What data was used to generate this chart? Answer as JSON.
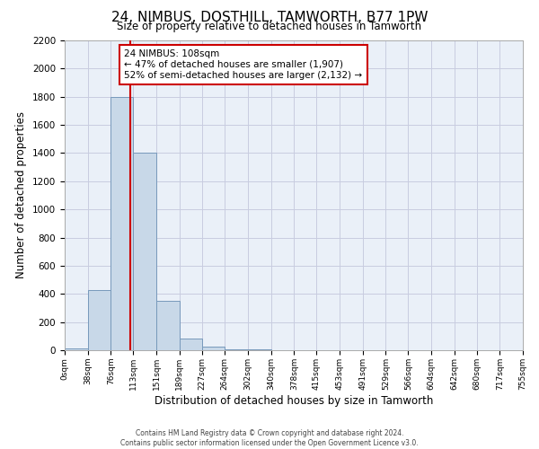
{
  "title": "24, NIMBUS, DOSTHILL, TAMWORTH, B77 1PW",
  "subtitle": "Size of property relative to detached houses in Tamworth",
  "xlabel": "Distribution of detached houses by size in Tamworth",
  "ylabel": "Number of detached properties",
  "bin_edges": [
    0,
    38,
    76,
    113,
    151,
    189,
    227,
    264,
    302,
    340,
    378,
    415,
    453,
    491,
    529,
    566,
    604,
    642,
    680,
    717,
    755
  ],
  "bin_counts": [
    10,
    430,
    1800,
    1400,
    350,
    80,
    25,
    5,
    5,
    0,
    0,
    0,
    0,
    0,
    0,
    0,
    0,
    0,
    0,
    0
  ],
  "bar_color": "#c8d8e8",
  "bar_edge_color": "#7799bb",
  "property_value": 108,
  "vline_color": "#cc0000",
  "annotation_text": "24 NIMBUS: 108sqm\n← 47% of detached houses are smaller (1,907)\n52% of semi-detached houses are larger (2,132) →",
  "annotation_box_color": "#ffffff",
  "annotation_box_edge_color": "#cc0000",
  "xlim": [
    0,
    755
  ],
  "ylim": [
    0,
    2200
  ],
  "yticks": [
    0,
    200,
    400,
    600,
    800,
    1000,
    1200,
    1400,
    1600,
    1800,
    2000,
    2200
  ],
  "xtick_labels": [
    "0sqm",
    "38sqm",
    "76sqm",
    "113sqm",
    "151sqm",
    "189sqm",
    "227sqm",
    "264sqm",
    "302sqm",
    "340sqm",
    "378sqm",
    "415sqm",
    "453sqm",
    "491sqm",
    "529sqm",
    "566sqm",
    "604sqm",
    "642sqm",
    "680sqm",
    "717sqm",
    "755sqm"
  ],
  "grid_color": "#c8cce0",
  "bg_color": "#eaf0f8",
  "footer_line1": "Contains HM Land Registry data © Crown copyright and database right 2024.",
  "footer_line2": "Contains public sector information licensed under the Open Government Licence v3.0."
}
